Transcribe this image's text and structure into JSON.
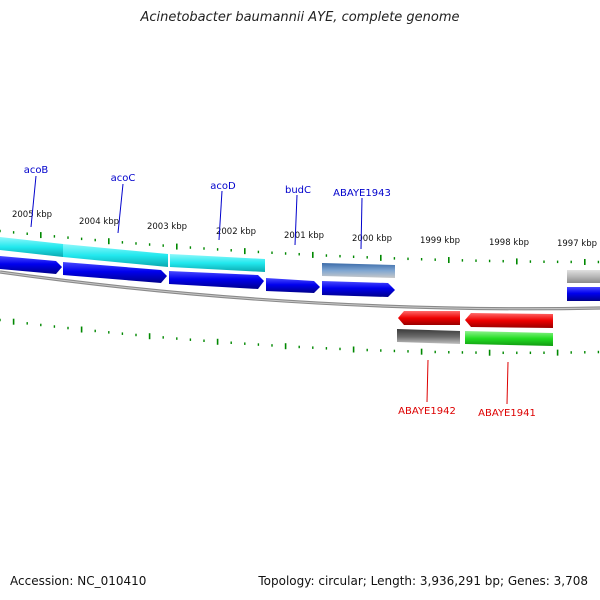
{
  "title": "Acinetobacter baumannii AYE, complete genome",
  "accession": "Accession: NC_010410",
  "summary": "Topology: circular; Length: 3,936,291 bp; Genes: 3,708",
  "ticks": [
    "2005 kbp",
    "2004 kbp",
    "2003 kbp",
    "2002 kbp",
    "2001 kbp",
    "2000 kbp",
    "1999 kbp",
    "1998 kbp",
    "1997 kbp"
  ],
  "genes_forward": [
    "acoB",
    "acoC",
    "acoD",
    "budC",
    "ABAYE1943"
  ],
  "genes_reverse": [
    "ABAYE1942",
    "ABAYE1941"
  ],
  "colors": {
    "forward_label": "#0000cc",
    "reverse_label": "#dd0000",
    "cds_blue": "#0000ee",
    "cds_red": "#ee0000",
    "cyan_feature": "#22e8ee",
    "green_feature": "#22dd22",
    "tick_green": "#008800",
    "backbone": "#888888"
  }
}
